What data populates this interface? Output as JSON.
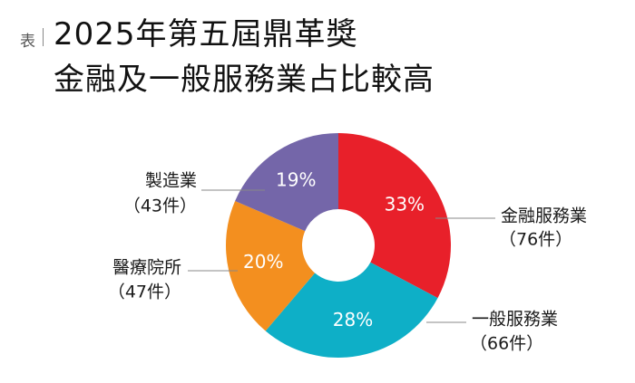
{
  "header": {
    "tag": "表",
    "title_line1": "2025年第五屆鼎革獎",
    "title_line2": "金融及一般服務業占比較高"
  },
  "chart_data": {
    "type": "pie",
    "donut": true,
    "slices": [
      {
        "name": "金融服務業",
        "count_label": "（76件）",
        "count": 76,
        "percent": 33,
        "percent_label": "33%",
        "color": "#e8202a"
      },
      {
        "name": "一般服務業",
        "count_label": "（66件）",
        "count": 66,
        "percent": 28,
        "percent_label": "28%",
        "color": "#0eafc7"
      },
      {
        "name": "醫療院所",
        "count_label": "（47件）",
        "count": 47,
        "percent": 20,
        "percent_label": "20%",
        "color": "#f38f1f"
      },
      {
        "name": "製造業",
        "count_label": "（43件）",
        "count": 43,
        "percent": 19,
        "percent_label": "19%",
        "color": "#7466a9"
      }
    ]
  }
}
